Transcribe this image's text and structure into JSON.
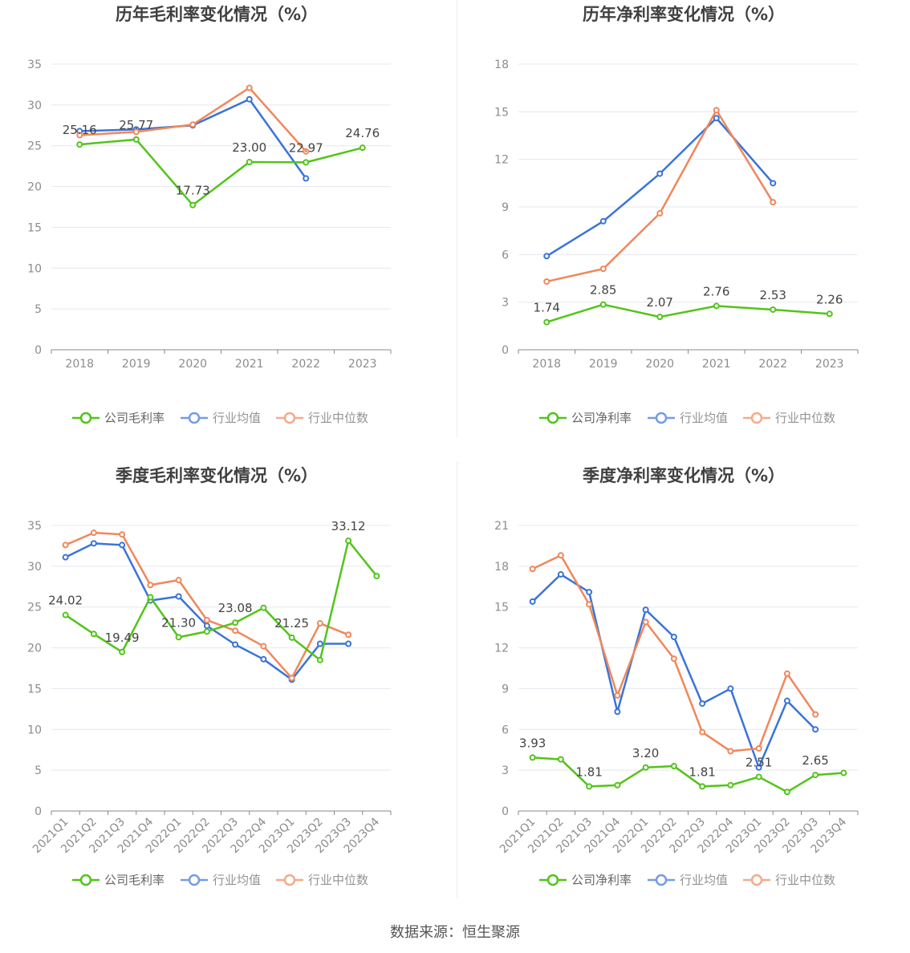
{
  "source_label": "数据来源：恒生聚源",
  "colors": {
    "company": "#52c41a",
    "avg": "#3b73d9",
    "median": "#f0875a",
    "grid": "#e6e8ef",
    "axis": "#8a8a8a",
    "tick_text": "#8c8c8c",
    "title": "#404040",
    "label": "#444444",
    "legend_text": "#666666"
  },
  "chart_data": [
    {
      "type": "line",
      "title": "历年毛利率变化情况（%）",
      "categories": [
        "2018",
        "2019",
        "2020",
        "2021",
        "2022",
        "2023"
      ],
      "ylim": [
        0,
        35
      ],
      "yticks": [
        0,
        5,
        10,
        15,
        20,
        25,
        30,
        35
      ],
      "grid": true,
      "legend": "bottom-center",
      "series": [
        {
          "name": "公司毛利率",
          "role": "company",
          "values": [
            25.16,
            25.77,
            17.73,
            23.0,
            22.97,
            24.76
          ],
          "labels": [
            "25.16",
            "25.77",
            "17.73",
            "23.00",
            "22.97",
            "24.76"
          ]
        },
        {
          "name": "行业均值",
          "role": "avg",
          "values": [
            26.8,
            27.0,
            27.5,
            30.7,
            21.0,
            null
          ]
        },
        {
          "name": "行业中位数",
          "role": "median",
          "values": [
            26.3,
            26.7,
            27.6,
            32.1,
            24.3,
            null
          ]
        }
      ]
    },
    {
      "type": "line",
      "title": "历年净利率变化情况（%）",
      "categories": [
        "2018",
        "2019",
        "2020",
        "2021",
        "2022",
        "2023"
      ],
      "ylim": [
        0,
        18
      ],
      "yticks": [
        0,
        3,
        6,
        9,
        12,
        15,
        18
      ],
      "grid": true,
      "legend": "bottom-center",
      "series": [
        {
          "name": "公司净利率",
          "role": "company",
          "values": [
            1.74,
            2.85,
            2.07,
            2.76,
            2.53,
            2.26
          ],
          "labels": [
            "1.74",
            "2.85",
            "2.07",
            "2.76",
            "2.53",
            "2.26"
          ]
        },
        {
          "name": "行业均值",
          "role": "avg",
          "values": [
            5.9,
            8.1,
            11.1,
            14.6,
            10.5,
            null
          ]
        },
        {
          "name": "行业中位数",
          "role": "median",
          "values": [
            4.3,
            5.1,
            8.6,
            15.1,
            9.3,
            null
          ]
        }
      ]
    },
    {
      "type": "line",
      "title": "季度毛利率变化情况（%）",
      "categories": [
        "2021Q1",
        "2021Q2",
        "2021Q3",
        "2021Q4",
        "2022Q1",
        "2022Q2",
        "2022Q3",
        "2022Q4",
        "2023Q1",
        "2023Q2",
        "2023Q3",
        "2023Q4"
      ],
      "ylim": [
        0,
        35
      ],
      "yticks": [
        0,
        5,
        10,
        15,
        20,
        25,
        30,
        35
      ],
      "grid": true,
      "legend": "bottom-center",
      "series": [
        {
          "name": "公司毛利率",
          "role": "company",
          "values": [
            24.02,
            21.7,
            19.49,
            26.2,
            21.3,
            22.0,
            23.08,
            24.9,
            21.25,
            18.5,
            33.12,
            28.8
          ],
          "labels": [
            "24.02",
            "",
            "19.49",
            "",
            "21.30",
            "",
            "23.08",
            "",
            "21.25",
            "",
            "33.12",
            ""
          ]
        },
        {
          "name": "行业均值",
          "role": "avg",
          "values": [
            31.1,
            32.8,
            32.6,
            25.8,
            26.3,
            22.7,
            20.4,
            18.6,
            16.1,
            20.5,
            20.5,
            null
          ]
        },
        {
          "name": "行业中位数",
          "role": "median",
          "values": [
            32.6,
            34.1,
            33.9,
            27.7,
            28.3,
            23.4,
            22.1,
            20.2,
            16.3,
            23.0,
            21.6,
            null
          ]
        }
      ]
    },
    {
      "type": "line",
      "title": "季度净利率变化情况（%）",
      "categories": [
        "2021Q1",
        "2021Q2",
        "2021Q3",
        "2021Q4",
        "2022Q1",
        "2022Q2",
        "2022Q3",
        "2022Q4",
        "2023Q1",
        "2023Q2",
        "2023Q3",
        "2023Q4"
      ],
      "ylim": [
        0,
        21
      ],
      "yticks": [
        0,
        3,
        6,
        9,
        12,
        15,
        18,
        21
      ],
      "grid": true,
      "legend": "bottom-center",
      "series": [
        {
          "name": "公司净利率",
          "role": "company",
          "values": [
            3.93,
            3.8,
            1.81,
            1.9,
            3.2,
            3.3,
            1.81,
            1.9,
            2.51,
            1.4,
            2.65,
            2.8
          ],
          "labels": [
            "3.93",
            "",
            "1.81",
            "",
            "3.20",
            "",
            "1.81",
            "",
            "2.51",
            "",
            "2.65",
            ""
          ]
        },
        {
          "name": "行业均值",
          "role": "avg",
          "values": [
            15.4,
            17.4,
            16.1,
            7.3,
            14.8,
            12.8,
            7.9,
            9.0,
            3.2,
            8.1,
            6.0,
            null
          ]
        },
        {
          "name": "行业中位数",
          "role": "median",
          "values": [
            17.8,
            18.8,
            15.2,
            8.5,
            13.9,
            11.2,
            5.8,
            4.4,
            4.6,
            10.1,
            7.1,
            null
          ]
        }
      ]
    }
  ]
}
